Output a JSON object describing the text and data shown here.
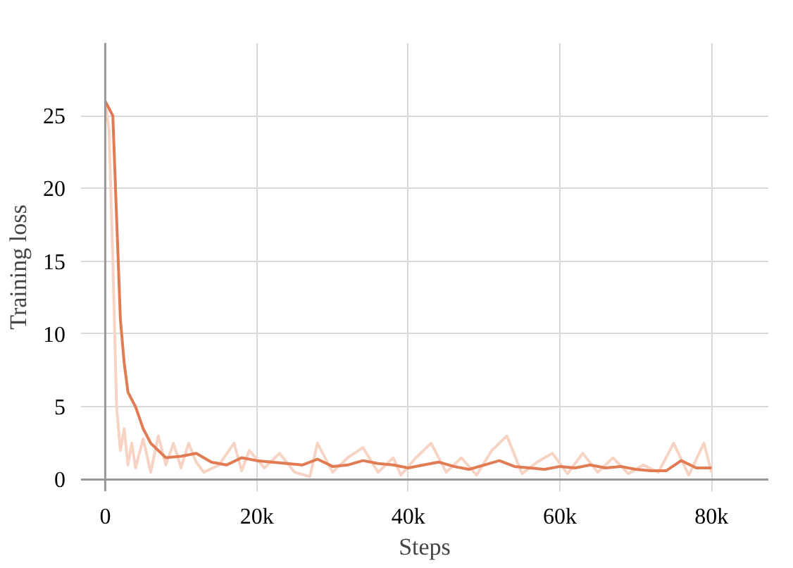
{
  "chart_data": {
    "type": "line",
    "xlabel": "Steps",
    "ylabel": "Training loss",
    "xlim": [
      -3200,
      87500
    ],
    "ylim": [
      -0.8,
      30
    ],
    "xticks": [
      0,
      {
        "value": 20000,
        "label": "20k"
      },
      {
        "value": 40000,
        "label": "40k"
      },
      {
        "value": 60000,
        "label": "60k"
      },
      {
        "value": 80000,
        "label": "80k"
      }
    ],
    "yticks": [
      0,
      5,
      10,
      15,
      20,
      25
    ],
    "grid": true,
    "series": [
      {
        "color": "#f7d3c4",
        "x": [
          0,
          500,
          1000,
          1500,
          2000,
          2500,
          3000,
          3500,
          4000,
          5000,
          6000,
          7000,
          8000,
          9000,
          10000,
          11000,
          12000,
          13000,
          15000,
          17000,
          18000,
          19000,
          21000,
          23000,
          25000,
          27000,
          28000,
          30000,
          32000,
          34000,
          36000,
          38000,
          39000,
          41000,
          43000,
          45000,
          47000,
          49000,
          51000,
          53000,
          55000,
          57000,
          59000,
          61000,
          63000,
          65000,
          67000,
          69000,
          71000,
          73000,
          75000,
          77000,
          79000,
          80000
        ],
        "values": [
          26,
          24,
          15,
          5,
          2,
          3.5,
          1.0,
          2.5,
          0.8,
          2.8,
          0.5,
          3.0,
          1.0,
          2.5,
          0.8,
          2.5,
          1.2,
          0.5,
          1.0,
          2.5,
          0.6,
          2.0,
          0.8,
          1.8,
          0.5,
          0.2,
          2.5,
          0.5,
          1.5,
          2.2,
          0.5,
          1.5,
          0.3,
          1.5,
          2.5,
          0.5,
          1.5,
          0.3,
          2.0,
          3.0,
          0.4,
          1.2,
          1.8,
          0.4,
          1.8,
          0.5,
          1.5,
          0.4,
          1.0,
          0.5,
          2.5,
          0.3,
          2.5,
          0.5
        ]
      },
      {
        "color": "#e07b53",
        "x": [
          0,
          500,
          1000,
          1500,
          2000,
          2500,
          3000,
          4000,
          5000,
          6000,
          7000,
          8000,
          10000,
          12000,
          14000,
          16000,
          18000,
          20000,
          22000,
          24000,
          26000,
          28000,
          30000,
          32000,
          34000,
          36000,
          38000,
          40000,
          42000,
          44000,
          46000,
          48000,
          50000,
          52000,
          54000,
          56000,
          58000,
          60000,
          62000,
          64000,
          66000,
          68000,
          70000,
          72000,
          74000,
          76000,
          78000,
          80000
        ],
        "values": [
          26,
          25.5,
          25,
          18,
          11,
          8,
          6,
          5,
          3.5,
          2.5,
          2,
          1.5,
          1.6,
          1.8,
          1.2,
          1.0,
          1.5,
          1.3,
          1.2,
          1.1,
          1.0,
          1.4,
          0.9,
          1.0,
          1.3,
          1.1,
          1.0,
          0.8,
          1.0,
          1.2,
          0.9,
          0.7,
          1.0,
          1.3,
          0.9,
          0.8,
          0.7,
          0.9,
          0.8,
          1.0,
          0.8,
          0.9,
          0.7,
          0.6,
          0.6,
          1.3,
          0.8,
          0.8
        ]
      }
    ]
  }
}
